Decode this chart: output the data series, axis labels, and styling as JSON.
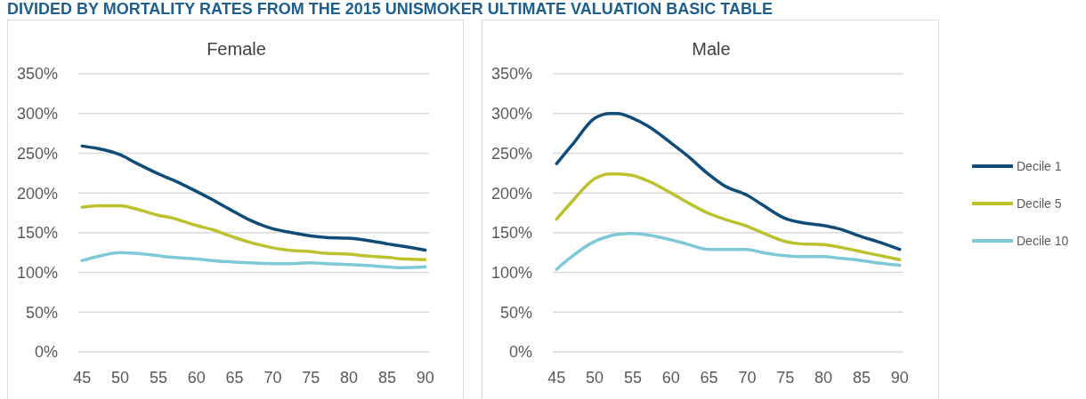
{
  "chart_data": [
    {
      "type": "line",
      "title": "Female",
      "annotations": [
        "DIVIDED BY MORTALITY RATES FROM THE 2015 UNISMOKER ULTIMATE VALUATION BASIC TABLE"
      ],
      "x": [
        45,
        47,
        50,
        52,
        55,
        57,
        60,
        62,
        65,
        67,
        70,
        72,
        75,
        77,
        80,
        82,
        85,
        87,
        90
      ],
      "series": [
        {
          "color": "#0f4c78",
          "values": [
            259,
            256,
            248,
            238,
            224,
            216,
            202,
            192,
            176,
            166,
            155,
            151,
            146,
            144,
            143,
            141,
            136,
            133,
            128
          ]
        },
        {
          "color": "#bcc12e",
          "values": [
            182,
            184,
            184,
            180,
            172,
            168,
            159,
            154,
            144,
            138,
            131,
            128,
            126,
            124,
            123,
            121,
            119,
            117,
            116
          ]
        },
        {
          "color": "#7ec8d8",
          "values": [
            115,
            120,
            125,
            124,
            121,
            119,
            117,
            115,
            113,
            112,
            111,
            111,
            112,
            111,
            110,
            109,
            107,
            106,
            107
          ]
        }
      ],
      "xlim": [
        44.5,
        90.5
      ],
      "xticks": [
        45,
        50,
        55,
        60,
        65,
        70,
        75,
        80,
        85,
        90
      ],
      "ylim": [
        0,
        350
      ],
      "yticks": [
        {
          "value": 0,
          "label": "0%"
        },
        {
          "value": 50,
          "label": "50%"
        },
        {
          "value": 100,
          "label": "100%"
        },
        {
          "value": 150,
          "label": "150%"
        },
        {
          "value": 200,
          "label": "200%"
        },
        {
          "value": 250,
          "label": "250%"
        },
        {
          "value": 300,
          "label": "300%"
        },
        {
          "value": 350,
          "label": "350%"
        }
      ],
      "grid": "y"
    },
    {
      "type": "line",
      "title": "Male",
      "x": [
        45,
        47,
        50,
        52,
        53,
        55,
        57,
        60,
        62,
        65,
        67,
        70,
        72,
        75,
        77,
        80,
        82,
        85,
        87,
        90
      ],
      "series": [
        {
          "name": "Decile 1",
          "color": "#0f4c78",
          "values": [
            237,
            260,
            294,
            300,
            300,
            294,
            284,
            263,
            248,
            223,
            209,
            197,
            185,
            168,
            163,
            159,
            155,
            145,
            139,
            129
          ]
        },
        {
          "name": "Decile 5",
          "color": "#bcc12e",
          "values": [
            167,
            189,
            218,
            224,
            224,
            222,
            215,
            200,
            189,
            174,
            167,
            158,
            150,
            139,
            136,
            135,
            132,
            126,
            122,
            116
          ]
        },
        {
          "name": "Decile 10",
          "color": "#7ec8d8",
          "values": [
            104,
            120,
            139,
            146,
            148,
            149,
            147,
            141,
            136,
            129,
            129,
            129,
            125,
            121,
            120,
            120,
            118,
            115,
            112,
            109
          ]
        }
      ],
      "xlim": [
        44.5,
        90.5
      ],
      "xticks": [
        45,
        50,
        55,
        60,
        65,
        70,
        75,
        80,
        85,
        90
      ],
      "ylim": [
        0,
        350
      ],
      "yticks": [
        {
          "value": 0,
          "label": "0%"
        },
        {
          "value": 50,
          "label": "50%"
        },
        {
          "value": 100,
          "label": "100%"
        },
        {
          "value": 150,
          "label": "150%"
        },
        {
          "value": 200,
          "label": "200%"
        },
        {
          "value": 250,
          "label": "250%"
        },
        {
          "value": 300,
          "label": "300%"
        },
        {
          "value": 350,
          "label": "350%"
        }
      ],
      "grid": "y",
      "legend": "right"
    }
  ]
}
